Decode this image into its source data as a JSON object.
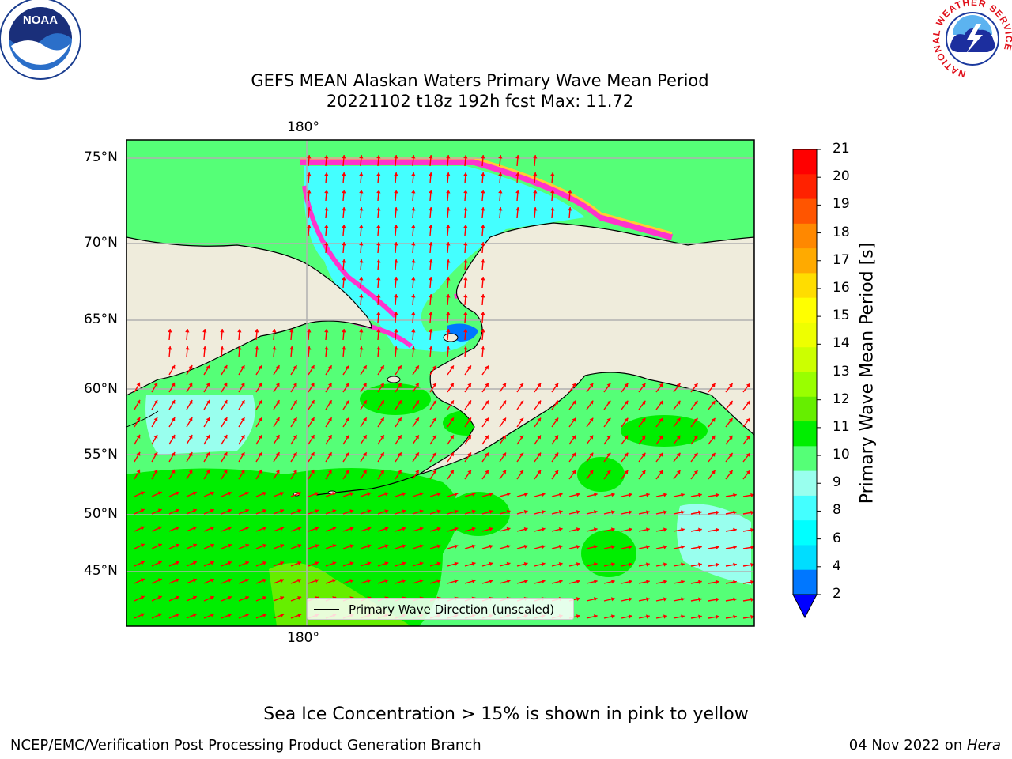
{
  "title": {
    "line1": "GEFS MEAN Alaskan Waters Primary Wave Mean Period",
    "line2": "20221102 t18z 192h fcst   Max: 11.72"
  },
  "map": {
    "lon_labels": {
      "top": "180°",
      "bottom": "180°"
    },
    "lat_labels": [
      "75°N",
      "70°N",
      "65°N",
      "60°N",
      "55°N",
      "50°N",
      "45°N"
    ],
    "legend": "Primary Wave Direction (unscaled)",
    "colors": {
      "land": "#efecdc",
      "coast": "#000000",
      "arrow": "#ff0000",
      "grid": "#b0b0b0"
    }
  },
  "colorbar": {
    "label": "Primary Wave Mean Period [s]",
    "ticks": [
      "21",
      "20",
      "19",
      "18",
      "17",
      "16",
      "15",
      "14",
      "13",
      "12",
      "11",
      "10",
      "9",
      "8",
      "6",
      "4",
      "2"
    ],
    "colors_top_down": [
      "#ff0000",
      "#ff2200",
      "#ff5500",
      "#ff8800",
      "#ffaa00",
      "#ffdd00",
      "#ffff00",
      "#eeff00",
      "#ccff00",
      "#99ff00",
      "#66ee00",
      "#00ee00",
      "#55ff77",
      "#99ffee",
      "#44ffff",
      "#00ffff",
      "#00ddff",
      "#0077ff"
    ],
    "extend_color": "#0000ff"
  },
  "logos": {
    "noaa": "NOAA",
    "nws_ring": "NATIONAL WEATHER SERVICE"
  },
  "ice_note": "Sea Ice Concentration > 15% is shown in pink to yellow",
  "footer": {
    "left": "NCEP/EMC/Verification Post Processing Product Generation Branch",
    "date": "04 Nov 2022 on ",
    "machine": "Hera"
  }
}
